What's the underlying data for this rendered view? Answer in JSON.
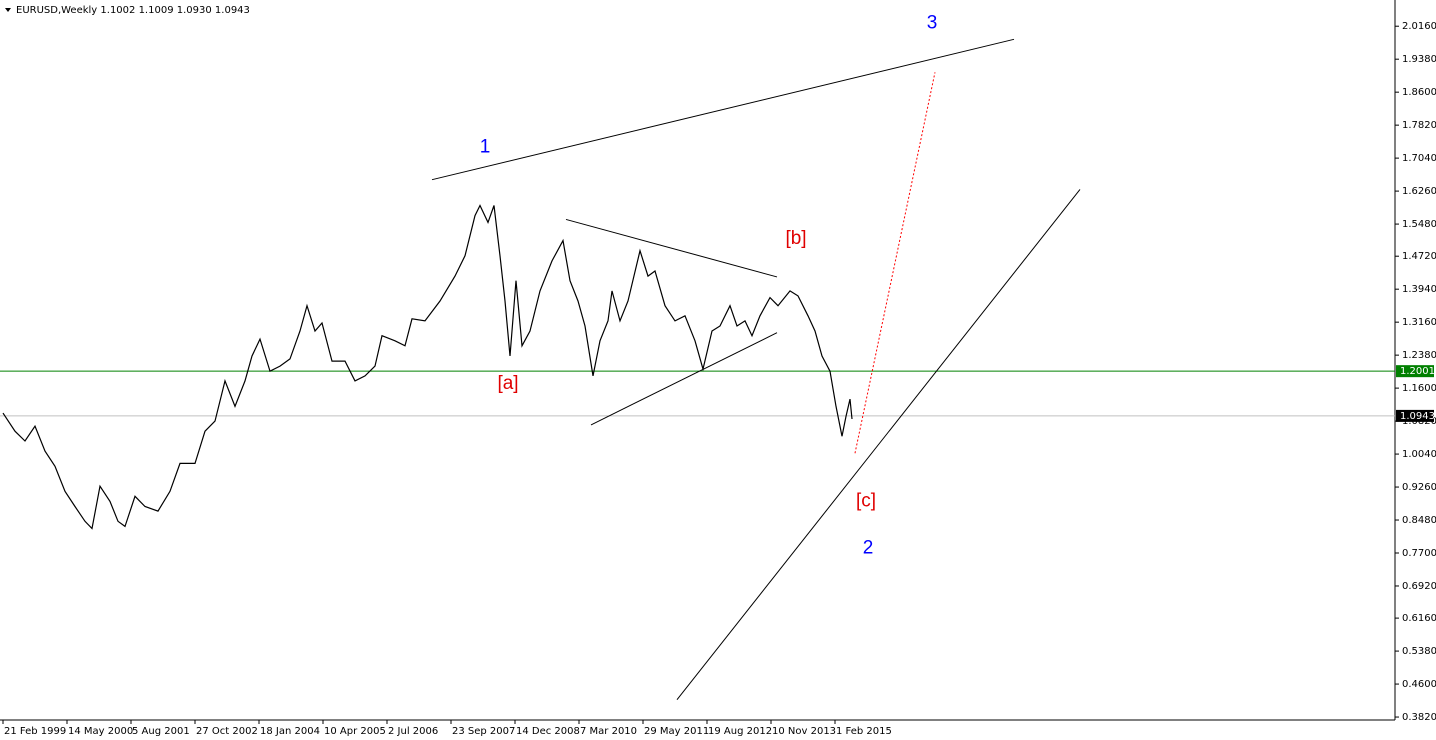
{
  "chart_data": {
    "type": "line",
    "title": "EURUSD,Weekly  1.1002 1.1009 1.0930 1.0943",
    "series": [
      {
        "color": "#000000",
        "x": [
          "1999-02-21",
          "1999-05-16",
          "1999-07-25",
          "1999-10-03",
          "1999-12-12",
          "2000-02-20",
          "2000-04-30",
          "2000-07-09",
          "2000-09-17",
          "2000-11-05",
          "2000-12-31",
          "2001-03-11",
          "2001-05-06",
          "2001-06-24",
          "2001-09-02",
          "2001-11-11",
          "2002-02-10",
          "2002-05-05",
          "2002-07-14",
          "2002-10-27",
          "2003-01-05",
          "2003-03-16",
          "2003-05-25",
          "2003-08-03",
          "2003-10-12",
          "2003-11-30",
          "2004-01-25",
          "2004-04-04",
          "2004-06-13",
          "2004-08-22",
          "2004-10-31",
          "2004-12-19",
          "2005-02-13",
          "2005-04-03",
          "2005-06-12",
          "2005-09-11",
          "2005-11-20",
          "2006-01-29",
          "2006-04-09",
          "2006-05-28",
          "2006-08-27",
          "2006-11-05",
          "2006-12-24",
          "2007-03-25",
          "2007-07-08",
          "2007-10-21",
          "2007-12-30",
          "2008-03-09",
          "2008-04-13",
          "2008-06-08",
          "2008-07-20",
          "2008-08-31",
          "2008-10-05",
          "2008-11-09",
          "2008-12-21",
          "2009-02-01",
          "2009-03-29",
          "2009-06-07",
          "2009-08-30",
          "2009-11-15",
          "2010-01-03",
          "2010-02-28",
          "2010-04-18",
          "2010-06-13",
          "2010-08-01",
          "2010-09-26",
          "2010-10-24",
          "2010-12-19",
          "2011-02-13",
          "2011-05-08",
          "2011-07-03",
          "2011-08-21",
          "2011-10-30",
          "2012-01-08",
          "2012-03-18",
          "2012-05-27",
          "2012-07-22",
          "2012-09-23",
          "2012-11-18",
          "2013-01-27",
          "2013-03-17",
          "2013-05-12",
          "2013-06-30",
          "2013-08-25",
          "2013-11-03",
          "2013-12-29",
          "2014-03-23",
          "2014-05-18",
          "2014-07-27",
          "2014-09-14",
          "2014-11-02",
          "2014-12-28",
          "2015-02-08",
          "2015-03-22",
          "2015-04-19",
          "2015-05-17",
          "2015-05-31"
        ],
        "values": [
          1.101,
          1.058,
          1.035,
          1.07,
          1.011,
          0.975,
          0.916,
          0.88,
          0.845,
          0.828,
          0.928,
          0.892,
          0.845,
          0.833,
          0.904,
          0.88,
          0.869,
          0.916,
          0.982,
          0.982,
          1.058,
          1.082,
          1.177,
          1.117,
          1.177,
          1.236,
          1.276,
          1.2,
          1.212,
          1.229,
          1.295,
          1.355,
          1.295,
          1.314,
          1.224,
          1.224,
          1.177,
          1.189,
          1.212,
          1.284,
          1.272,
          1.26,
          1.324,
          1.319,
          1.366,
          1.425,
          1.473,
          1.568,
          1.592,
          1.552,
          1.592,
          1.473,
          1.366,
          1.236,
          1.414,
          1.26,
          1.295,
          1.39,
          1.461,
          1.509,
          1.414,
          1.366,
          1.307,
          1.189,
          1.272,
          1.319,
          1.39,
          1.319,
          1.366,
          1.485,
          1.425,
          1.437,
          1.355,
          1.319,
          1.331,
          1.272,
          1.205,
          1.295,
          1.307,
          1.355,
          1.307,
          1.319,
          1.284,
          1.331,
          1.374,
          1.355,
          1.39,
          1.378,
          1.331,
          1.295,
          1.236,
          1.2,
          1.117,
          1.046,
          1.093,
          1.134,
          1.087
        ]
      }
    ],
    "xlim": [
      "1999-01-31",
      "2025-10-26"
    ],
    "xticks": [
      {
        "value": "1999-02-21",
        "label": "21 Feb 1999"
      },
      {
        "value": "2000-05-14",
        "label": "14 May 2000"
      },
      {
        "value": "2001-08-05",
        "label": "5 Aug 2001"
      },
      {
        "value": "2002-10-27",
        "label": "27 Oct 2002"
      },
      {
        "value": "2004-01-18",
        "label": "18 Jan 2004"
      },
      {
        "value": "2005-04-10",
        "label": "10 Apr 2005"
      },
      {
        "value": "2006-07-02",
        "label": "2 Jul 2006"
      },
      {
        "value": "2007-09-23",
        "label": "23 Sep 2007"
      },
      {
        "value": "2008-12-14",
        "label": "14 Dec 2008"
      },
      {
        "value": "2010-03-07",
        "label": "7 Mar 2010"
      },
      {
        "value": "2011-05-29",
        "label": "29 May 2011"
      },
      {
        "value": "2012-08-19",
        "label": "19 Aug 2012"
      },
      {
        "value": "2013-11-10",
        "label": "10 Nov 2013"
      },
      {
        "value": "2015-02-01",
        "label": "1 Feb 2015"
      }
    ],
    "ylim": [
      0.375,
      2.078
    ],
    "yticks": [
      {
        "value": 2.016,
        "label": "2.0160"
      },
      {
        "value": 1.938,
        "label": "1.9380"
      },
      {
        "value": 1.86,
        "label": "1.8600"
      },
      {
        "value": 1.782,
        "label": "1.7820"
      },
      {
        "value": 1.704,
        "label": "1.7040"
      },
      {
        "value": 1.626,
        "label": "1.6260"
      },
      {
        "value": 1.548,
        "label": "1.5480"
      },
      {
        "value": 1.472,
        "label": "1.4720"
      },
      {
        "value": 1.394,
        "label": "1.3940"
      },
      {
        "value": 1.316,
        "label": "1.3160"
      },
      {
        "value": 1.238,
        "label": "1.2380"
      },
      {
        "value": 1.16,
        "label": "1.1600"
      },
      {
        "value": 1.082,
        "label": "1.0820"
      },
      {
        "value": 1.004,
        "label": "1.0040"
      },
      {
        "value": 0.926,
        "label": "0.9260"
      },
      {
        "value": 0.848,
        "label": "0.8480"
      },
      {
        "value": 0.77,
        "label": "0.7700"
      },
      {
        "value": 0.692,
        "label": "0.6920"
      },
      {
        "value": 0.616,
        "label": "0.6160"
      },
      {
        "value": 0.538,
        "label": "0.5380"
      },
      {
        "value": 0.46,
        "label": "0.4600"
      },
      {
        "value": 0.382,
        "label": "0.3820"
      }
    ],
    "hlines": [
      {
        "value": 1.2001,
        "color": "#008000"
      },
      {
        "value": 1.0943,
        "color": "#c0c0c0"
      }
    ],
    "trendlines": [
      {
        "x": [
          "2007-05-13",
          "2018-07-08"
        ],
        "values": [
          1.653,
          1.985
        ],
        "color": "#000000",
        "dash": false
      },
      {
        "x": [
          "2009-12-06",
          "2013-12-22"
        ],
        "values": [
          1.559,
          1.423
        ],
        "color": "#000000",
        "dash": false
      },
      {
        "x": [
          "2010-05-30",
          "2013-12-22"
        ],
        "values": [
          1.073,
          1.291
        ],
        "color": "#000000",
        "dash": false
      },
      {
        "x": [
          "2012-01-22",
          "2019-10-13"
        ],
        "values": [
          0.423,
          1.63
        ],
        "color": "#000000",
        "dash": false
      },
      {
        "x": [
          "2015-06-21",
          "2017-01-01"
        ],
        "values": [
          1.006,
          1.907
        ],
        "color": "#ff0000",
        "dash": true
      }
    ],
    "annotations": [
      {
        "text": "1",
        "x": "2008-05-18",
        "y": 1.729,
        "color": "#0000ff"
      },
      {
        "text": "3",
        "x": "2016-12-11",
        "y": 2.023,
        "color": "#0000ff"
      },
      {
        "text": "2",
        "x": "2015-09-20",
        "y": 0.781,
        "color": "#0000ff"
      },
      {
        "text": "[a]",
        "x": "2008-10-26",
        "y": 1.17,
        "color": "#e00000"
      },
      {
        "text": "[b]",
        "x": "2014-05-04",
        "y": 1.513,
        "color": "#e00000"
      },
      {
        "text": "[c]",
        "x": "2015-09-06",
        "y": 0.892,
        "color": "#e00000"
      }
    ]
  }
}
